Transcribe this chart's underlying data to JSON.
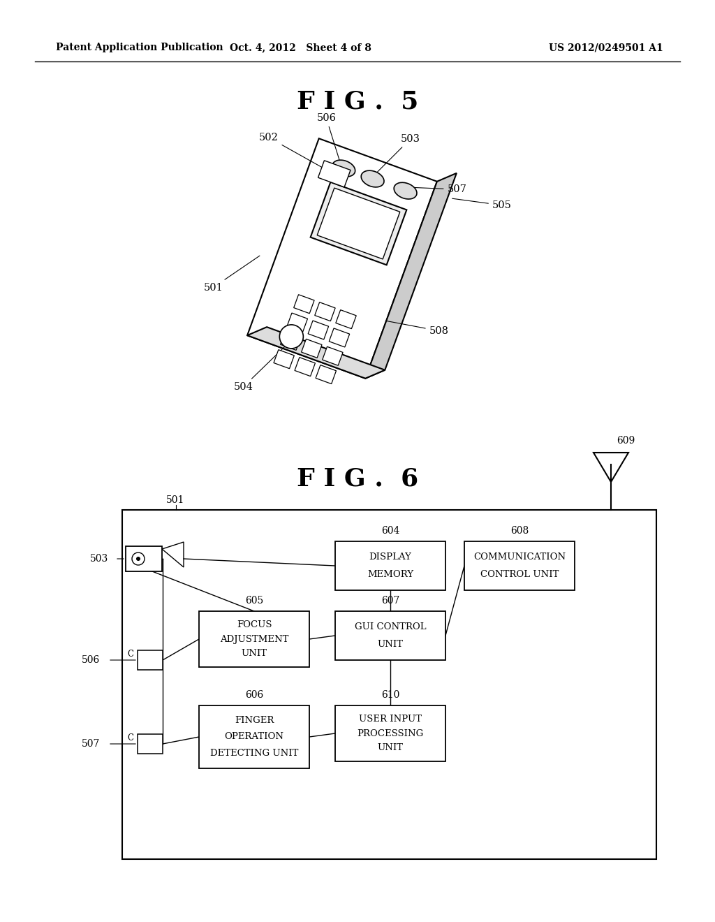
{
  "bg_color": "#ffffff",
  "header_left": "Patent Application Publication",
  "header_center": "Oct. 4, 2012   Sheet 4 of 8",
  "header_right": "US 2012/0249501 A1",
  "fig5_title": "F I G .  5",
  "fig6_title": "F I G .  6",
  "line_color": "#000000"
}
